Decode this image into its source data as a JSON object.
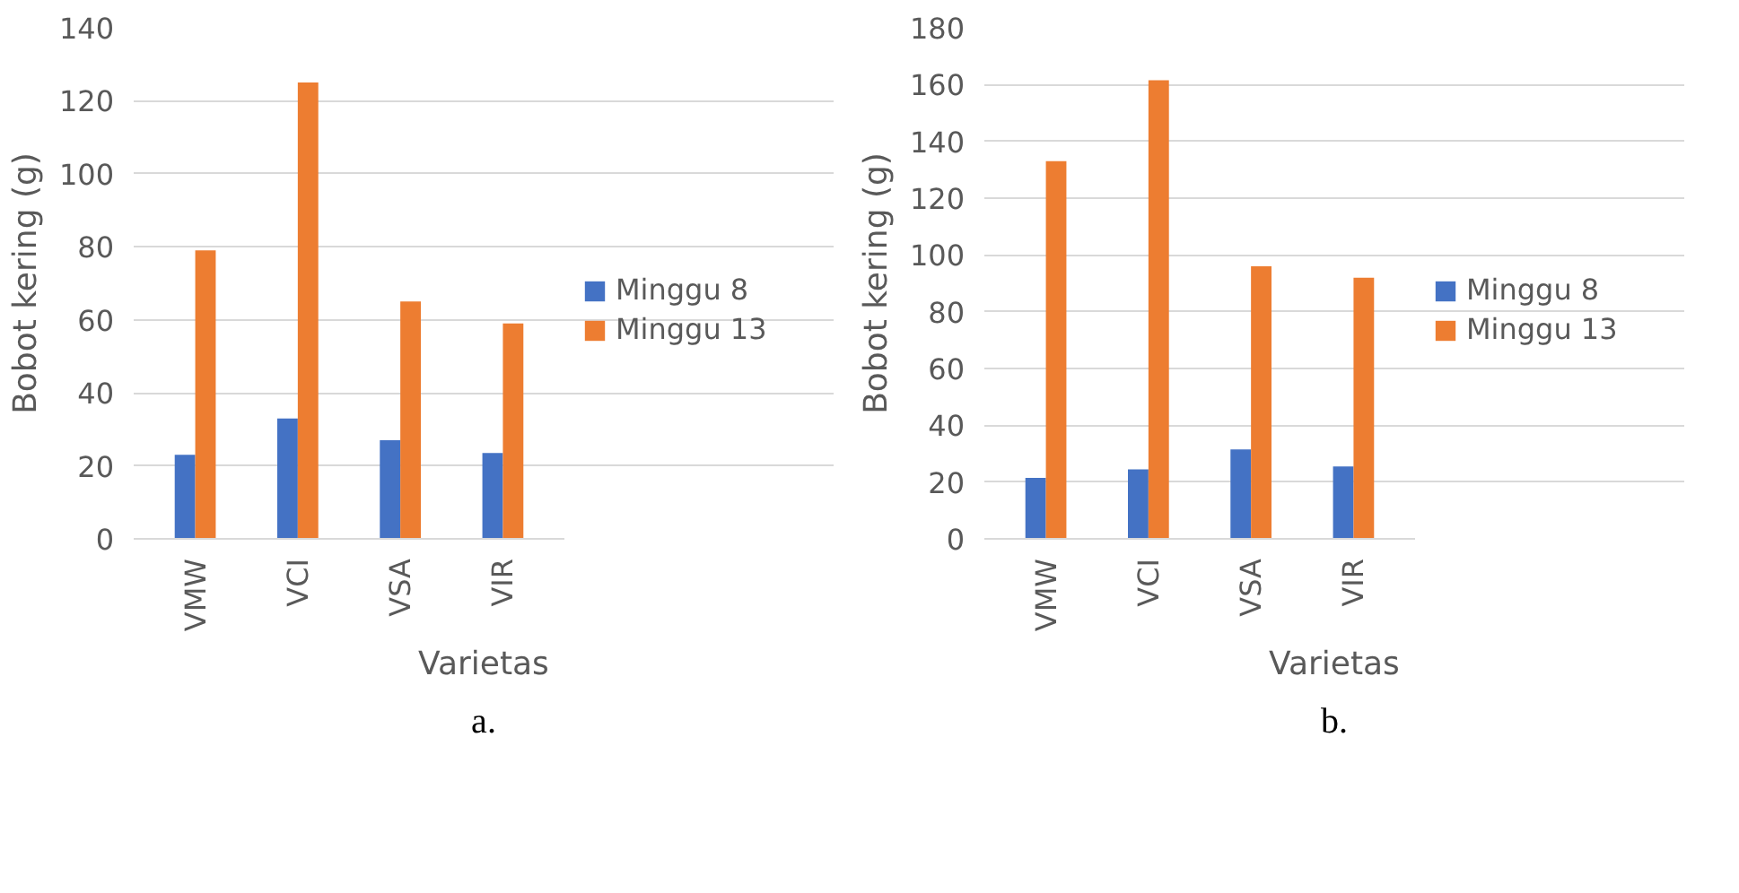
{
  "chart_data": [
    {
      "type": "bar",
      "categories": [
        "VMW",
        "VCI",
        "VSA",
        "VIR"
      ],
      "xlabel": "Varietas",
      "ylabel": "Bobot kering (g)",
      "series": [
        {
          "name": "Minggu 8",
          "color": "#4472c4",
          "values": [
            23,
            33,
            27,
            23.5
          ]
        },
        {
          "name": "Minggu 13",
          "color": "#ed7d31",
          "values": [
            79,
            125,
            65,
            59
          ]
        }
      ],
      "ylim": [
        0,
        140
      ],
      "yticks": [
        0,
        20,
        40,
        60,
        80,
        100,
        120,
        140
      ],
      "grid": "y",
      "legend": "right",
      "annotations": [
        "a."
      ]
    },
    {
      "type": "bar",
      "categories": [
        "VMW",
        "VCI",
        "VSA",
        "VIR"
      ],
      "xlabel": "Varietas",
      "ylabel": "Bobot kering (g)",
      "series": [
        {
          "name": "Minggu 8",
          "color": "#4472c4",
          "values": [
            21.5,
            24.5,
            31.5,
            25.5
          ]
        },
        {
          "name": "Minggu 13",
          "color": "#ed7d31",
          "values": [
            133,
            161.5,
            96,
            92
          ]
        }
      ],
      "ylim": [
        0,
        180
      ],
      "yticks": [
        0,
        20,
        40,
        60,
        80,
        100,
        120,
        140,
        160,
        180
      ],
      "grid": "y",
      "legend": "right",
      "annotations": [
        "b."
      ]
    }
  ]
}
